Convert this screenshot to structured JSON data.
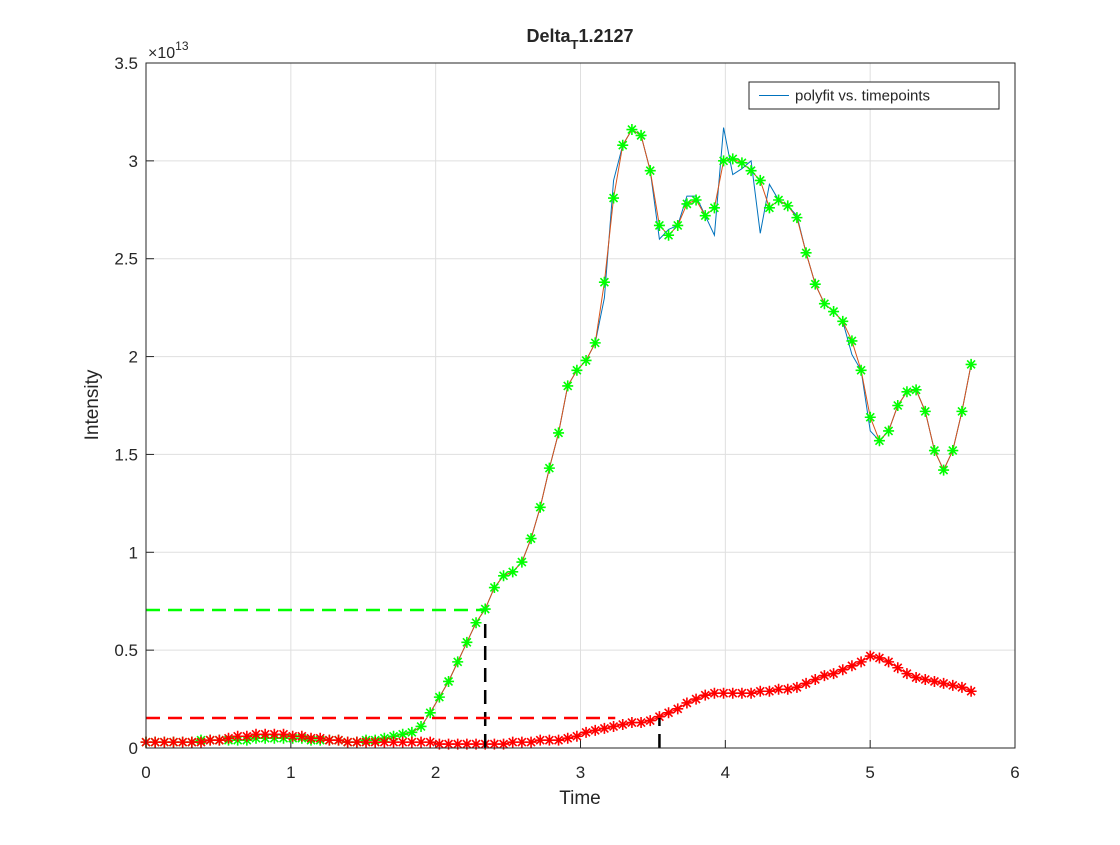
{
  "chart_data": {
    "type": "line",
    "title": {
      "text": "Delta",
      "subscript": "T",
      "suffix": "1.2127"
    },
    "x_label": "Time",
    "y_label": "Intensity",
    "y_exponent": {
      "base": "×10",
      "power": "13"
    },
    "xlim": [
      0,
      6
    ],
    "ylim": [
      0,
      3.5
    ],
    "xticks": [
      0,
      1,
      2,
      3,
      4,
      5,
      6
    ],
    "yticks": [
      0,
      0.5,
      1,
      1.5,
      2,
      2.5,
      3,
      3.5
    ],
    "grid": true,
    "legend": "northeast",
    "x": [
      0,
      0.0633,
      0.1266,
      0.1899,
      0.2532,
      0.3165,
      0.3798,
      0.4431,
      0.5064,
      0.5697,
      0.633,
      0.6963,
      0.7596,
      0.8229,
      0.8862,
      0.9495,
      1.0128,
      1.0761,
      1.1394,
      1.2027,
      1.266,
      1.3293,
      1.3926,
      1.4559,
      1.5192,
      1.5825,
      1.6458,
      1.7091,
      1.7724,
      1.8357,
      1.899,
      1.9623,
      2.0256,
      2.0889,
      2.1522,
      2.2155,
      2.2788,
      2.3421,
      2.4054,
      2.4687,
      2.532,
      2.5953,
      2.6586,
      2.7219,
      2.7852,
      2.8485,
      2.9118,
      2.9751,
      3.0384,
      3.1017,
      3.165,
      3.2283,
      3.2916,
      3.3549,
      3.4182,
      3.4815,
      3.5448,
      3.6081,
      3.6714,
      3.7347,
      3.798,
      3.8613,
      3.9246,
      3.9879,
      4.0512,
      4.1145,
      4.1778,
      4.2411,
      4.3044,
      4.3677,
      4.431,
      4.4943,
      4.5576,
      4.6209,
      4.6842,
      4.7475,
      4.8108,
      4.8741,
      4.9374,
      5.0007,
      5.064,
      5.1273,
      5.1906,
      5.2539,
      5.3172,
      5.3805,
      5.4438,
      5.5071,
      5.5704,
      5.6337,
      5.697
    ],
    "series": [
      {
        "name": "polyfit vs. timepoints",
        "color": "#0072bd",
        "marker": "none",
        "values": [
          0.03,
          0.03,
          0.03,
          0.03,
          0.03,
          0.03,
          0.04,
          0.04,
          0.04,
          0.04,
          0.04,
          0.04,
          0.05,
          0.05,
          0.05,
          0.05,
          0.05,
          0.05,
          0.04,
          0.04,
          0.04,
          0.04,
          0.03,
          0.03,
          0.04,
          0.04,
          0.05,
          0.06,
          0.07,
          0.08,
          0.11,
          0.18,
          0.26,
          0.34,
          0.44,
          0.54,
          0.64,
          0.71,
          0.82,
          0.88,
          0.9,
          0.95,
          1.07,
          1.23,
          1.43,
          1.61,
          1.85,
          1.93,
          1.98,
          2.07,
          2.3,
          2.9,
          3.08,
          3.16,
          3.13,
          2.95,
          2.6,
          2.65,
          2.67,
          2.82,
          2.82,
          2.72,
          2.62,
          3.17,
          2.93,
          2.96,
          3.0,
          2.63,
          2.88,
          2.8,
          2.77,
          2.72,
          2.53,
          2.37,
          2.27,
          2.23,
          2.18,
          2.01,
          1.93,
          1.62,
          1.57,
          1.62,
          1.75,
          1.82,
          1.83,
          1.72,
          1.52,
          1.42,
          1.52,
          1.72,
          1.96
        ]
      },
      {
        "color": "#d95319",
        "marker": "star",
        "marker_color": "#00ff00",
        "values": [
          0.03,
          0.03,
          0.03,
          0.03,
          0.03,
          0.03,
          0.04,
          0.04,
          0.04,
          0.04,
          0.04,
          0.04,
          0.05,
          0.05,
          0.05,
          0.05,
          0.05,
          0.05,
          0.04,
          0.04,
          0.04,
          0.04,
          0.03,
          0.03,
          0.04,
          0.04,
          0.05,
          0.06,
          0.07,
          0.08,
          0.11,
          0.18,
          0.26,
          0.34,
          0.44,
          0.54,
          0.64,
          0.71,
          0.82,
          0.88,
          0.9,
          0.95,
          1.07,
          1.23,
          1.43,
          1.61,
          1.85,
          1.93,
          1.98,
          2.07,
          2.38,
          2.81,
          3.08,
          3.16,
          3.13,
          2.95,
          2.67,
          2.62,
          2.67,
          2.78,
          2.8,
          2.72,
          2.76,
          3.0,
          3.01,
          2.99,
          2.95,
          2.9,
          2.76,
          2.8,
          2.77,
          2.71,
          2.53,
          2.37,
          2.27,
          2.23,
          2.18,
          2.08,
          1.93,
          1.69,
          1.57,
          1.62,
          1.75,
          1.82,
          1.83,
          1.72,
          1.52,
          1.42,
          1.52,
          1.72,
          1.96
        ]
      },
      {
        "color": "#ff0000",
        "marker": "star",
        "marker_color": "#ff0000",
        "values": [
          0.03,
          0.03,
          0.03,
          0.03,
          0.03,
          0.03,
          0.03,
          0.04,
          0.04,
          0.05,
          0.06,
          0.06,
          0.07,
          0.07,
          0.07,
          0.07,
          0.06,
          0.06,
          0.05,
          0.05,
          0.04,
          0.04,
          0.03,
          0.03,
          0.03,
          0.03,
          0.03,
          0.03,
          0.03,
          0.03,
          0.03,
          0.03,
          0.02,
          0.02,
          0.02,
          0.02,
          0.02,
          0.02,
          0.02,
          0.02,
          0.03,
          0.03,
          0.03,
          0.04,
          0.04,
          0.04,
          0.05,
          0.06,
          0.08,
          0.09,
          0.1,
          0.11,
          0.12,
          0.13,
          0.13,
          0.14,
          0.16,
          0.18,
          0.2,
          0.23,
          0.25,
          0.27,
          0.28,
          0.28,
          0.28,
          0.28,
          0.28,
          0.29,
          0.29,
          0.3,
          0.3,
          0.31,
          0.33,
          0.35,
          0.37,
          0.38,
          0.4,
          0.42,
          0.44,
          0.47,
          0.46,
          0.44,
          0.41,
          0.38,
          0.36,
          0.35,
          0.34,
          0.33,
          0.32,
          0.31,
          0.29
        ]
      }
    ],
    "reference_lines": [
      {
        "x": [
          0,
          2.334
        ],
        "y": [
          0.705,
          0.705
        ],
        "color": "#00ff00"
      },
      {
        "x": [
          2.342,
          2.342
        ],
        "y": [
          0,
          0.65
        ],
        "color": "#000000"
      },
      {
        "x": [
          0,
          3.24
        ],
        "y": [
          0.153,
          0.153
        ],
        "color": "#ff0000"
      },
      {
        "x": [
          3.545,
          3.545
        ],
        "y": [
          0,
          0.153
        ],
        "color": "#000000"
      }
    ]
  }
}
